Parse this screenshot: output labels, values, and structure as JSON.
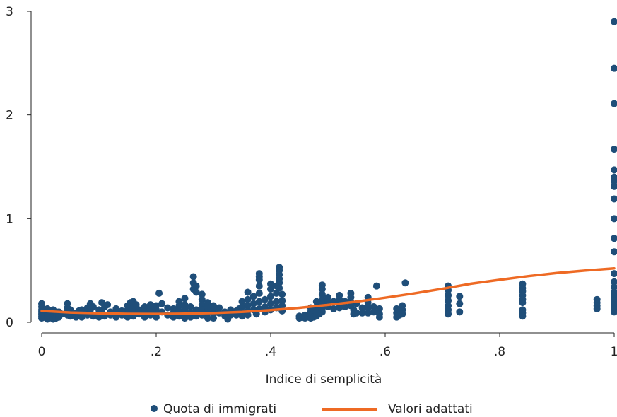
{
  "chart_data": {
    "type": "scatter",
    "xlabel": "Indice di semplicità",
    "ylabel": "",
    "xlim": [
      0,
      1
    ],
    "ylim": [
      0,
      3
    ],
    "x_ticks": [
      {
        "value": 0,
        "label": "0"
      },
      {
        "value": 0.2,
        "label": ".2"
      },
      {
        "value": 0.4,
        "label": ".4"
      },
      {
        "value": 0.6,
        "label": ".6"
      },
      {
        "value": 0.8,
        "label": ".8"
      },
      {
        "value": 1,
        "label": "1"
      }
    ],
    "y_ticks": [
      {
        "value": 0,
        "label": "0"
      },
      {
        "value": 1,
        "label": "1"
      },
      {
        "value": 2,
        "label": "2"
      },
      {
        "value": 3,
        "label": "3"
      }
    ],
    "grid": false,
    "legend_position": "bottom",
    "series": [
      {
        "name": "Quota di immigrati",
        "kind": "scatter",
        "color": "#1f4e79",
        "points": [
          [
            0.0,
            0.18
          ],
          [
            0.0,
            0.15
          ],
          [
            0.0,
            0.12
          ],
          [
            0.0,
            0.1
          ],
          [
            0.0,
            0.08
          ],
          [
            0.0,
            0.06
          ],
          [
            0.0,
            0.04
          ],
          [
            0.01,
            0.13
          ],
          [
            0.01,
            0.07
          ],
          [
            0.01,
            0.03
          ],
          [
            0.015,
            0.11
          ],
          [
            0.015,
            0.05
          ],
          [
            0.02,
            0.12
          ],
          [
            0.02,
            0.09
          ],
          [
            0.02,
            0.06
          ],
          [
            0.02,
            0.03
          ],
          [
            0.025,
            0.1
          ],
          [
            0.025,
            0.04
          ],
          [
            0.03,
            0.1
          ],
          [
            0.03,
            0.07
          ],
          [
            0.03,
            0.05
          ],
          [
            0.035,
            0.08
          ],
          [
            0.045,
            0.18
          ],
          [
            0.045,
            0.14
          ],
          [
            0.045,
            0.1
          ],
          [
            0.045,
            0.07
          ],
          [
            0.05,
            0.12
          ],
          [
            0.05,
            0.06
          ],
          [
            0.06,
            0.09
          ],
          [
            0.06,
            0.05
          ],
          [
            0.065,
            0.11
          ],
          [
            0.07,
            0.12
          ],
          [
            0.07,
            0.08
          ],
          [
            0.07,
            0.05
          ],
          [
            0.08,
            0.14
          ],
          [
            0.08,
            0.1
          ],
          [
            0.08,
            0.07
          ],
          [
            0.085,
            0.18
          ],
          [
            0.085,
            0.12
          ],
          [
            0.09,
            0.15
          ],
          [
            0.09,
            0.06
          ],
          [
            0.1,
            0.12
          ],
          [
            0.1,
            0.08
          ],
          [
            0.1,
            0.05
          ],
          [
            0.105,
            0.19
          ],
          [
            0.105,
            0.1
          ],
          [
            0.11,
            0.15
          ],
          [
            0.11,
            0.06
          ],
          [
            0.115,
            0.17
          ],
          [
            0.12,
            0.1
          ],
          [
            0.12,
            0.07
          ],
          [
            0.13,
            0.13
          ],
          [
            0.13,
            0.09
          ],
          [
            0.13,
            0.05
          ],
          [
            0.14,
            0.11
          ],
          [
            0.14,
            0.07
          ],
          [
            0.15,
            0.16
          ],
          [
            0.15,
            0.12
          ],
          [
            0.15,
            0.08
          ],
          [
            0.15,
            0.05
          ],
          [
            0.155,
            0.19
          ],
          [
            0.16,
            0.2
          ],
          [
            0.16,
            0.14
          ],
          [
            0.16,
            0.1
          ],
          [
            0.16,
            0.06
          ],
          [
            0.165,
            0.17
          ],
          [
            0.17,
            0.12
          ],
          [
            0.17,
            0.08
          ],
          [
            0.18,
            0.15
          ],
          [
            0.18,
            0.1
          ],
          [
            0.18,
            0.05
          ],
          [
            0.19,
            0.17
          ],
          [
            0.19,
            0.12
          ],
          [
            0.19,
            0.07
          ],
          [
            0.2,
            0.16
          ],
          [
            0.2,
            0.12
          ],
          [
            0.2,
            0.08
          ],
          [
            0.2,
            0.05
          ],
          [
            0.205,
            0.28
          ],
          [
            0.21,
            0.18
          ],
          [
            0.21,
            0.1
          ],
          [
            0.22,
            0.14
          ],
          [
            0.22,
            0.07
          ],
          [
            0.23,
            0.13
          ],
          [
            0.23,
            0.09
          ],
          [
            0.23,
            0.05
          ],
          [
            0.24,
            0.2
          ],
          [
            0.24,
            0.16
          ],
          [
            0.24,
            0.11
          ],
          [
            0.24,
            0.06
          ],
          [
            0.25,
            0.23
          ],
          [
            0.25,
            0.17
          ],
          [
            0.25,
            0.12
          ],
          [
            0.25,
            0.08
          ],
          [
            0.25,
            0.04
          ],
          [
            0.26,
            0.15
          ],
          [
            0.26,
            0.09
          ],
          [
            0.26,
            0.05
          ],
          [
            0.265,
            0.44
          ],
          [
            0.265,
            0.38
          ],
          [
            0.265,
            0.32
          ],
          [
            0.27,
            0.35
          ],
          [
            0.27,
            0.29
          ],
          [
            0.27,
            0.12
          ],
          [
            0.27,
            0.06
          ],
          [
            0.28,
            0.27
          ],
          [
            0.28,
            0.22
          ],
          [
            0.28,
            0.17
          ],
          [
            0.28,
            0.12
          ],
          [
            0.28,
            0.07
          ],
          [
            0.29,
            0.19
          ],
          [
            0.29,
            0.14
          ],
          [
            0.29,
            0.09
          ],
          [
            0.29,
            0.04
          ],
          [
            0.3,
            0.16
          ],
          [
            0.3,
            0.12
          ],
          [
            0.3,
            0.08
          ],
          [
            0.3,
            0.04
          ],
          [
            0.31,
            0.14
          ],
          [
            0.31,
            0.09
          ],
          [
            0.32,
            0.1
          ],
          [
            0.32,
            0.06
          ],
          [
            0.325,
            0.03
          ],
          [
            0.33,
            0.12
          ],
          [
            0.33,
            0.07
          ],
          [
            0.34,
            0.11
          ],
          [
            0.34,
            0.07
          ],
          [
            0.345,
            0.13
          ],
          [
            0.35,
            0.2
          ],
          [
            0.35,
            0.15
          ],
          [
            0.35,
            0.1
          ],
          [
            0.35,
            0.06
          ],
          [
            0.36,
            0.29
          ],
          [
            0.36,
            0.22
          ],
          [
            0.36,
            0.16
          ],
          [
            0.36,
            0.11
          ],
          [
            0.36,
            0.07
          ],
          [
            0.37,
            0.25
          ],
          [
            0.37,
            0.18
          ],
          [
            0.37,
            0.12
          ],
          [
            0.375,
            0.08
          ],
          [
            0.38,
            0.47
          ],
          [
            0.38,
            0.44
          ],
          [
            0.38,
            0.41
          ],
          [
            0.38,
            0.35
          ],
          [
            0.38,
            0.28
          ],
          [
            0.38,
            0.2
          ],
          [
            0.38,
            0.13
          ],
          [
            0.39,
            0.22
          ],
          [
            0.39,
            0.15
          ],
          [
            0.39,
            0.1
          ],
          [
            0.4,
            0.37
          ],
          [
            0.4,
            0.32
          ],
          [
            0.4,
            0.25
          ],
          [
            0.4,
            0.18
          ],
          [
            0.4,
            0.12
          ],
          [
            0.41,
            0.35
          ],
          [
            0.41,
            0.28
          ],
          [
            0.41,
            0.2
          ],
          [
            0.41,
            0.14
          ],
          [
            0.415,
            0.53
          ],
          [
            0.415,
            0.5
          ],
          [
            0.415,
            0.46
          ],
          [
            0.415,
            0.42
          ],
          [
            0.415,
            0.38
          ],
          [
            0.415,
            0.33
          ],
          [
            0.42,
            0.27
          ],
          [
            0.42,
            0.21
          ],
          [
            0.42,
            0.16
          ],
          [
            0.42,
            0.11
          ],
          [
            0.45,
            0.06
          ],
          [
            0.45,
            0.04
          ],
          [
            0.455,
            0.05
          ],
          [
            0.46,
            0.07
          ],
          [
            0.46,
            0.04
          ],
          [
            0.465,
            0.05
          ],
          [
            0.47,
            0.14
          ],
          [
            0.47,
            0.1
          ],
          [
            0.47,
            0.07
          ],
          [
            0.47,
            0.04
          ],
          [
            0.475,
            0.12
          ],
          [
            0.475,
            0.05
          ],
          [
            0.48,
            0.2
          ],
          [
            0.48,
            0.15
          ],
          [
            0.48,
            0.1
          ],
          [
            0.48,
            0.06
          ],
          [
            0.485,
            0.17
          ],
          [
            0.485,
            0.08
          ],
          [
            0.49,
            0.36
          ],
          [
            0.49,
            0.32
          ],
          [
            0.49,
            0.27
          ],
          [
            0.49,
            0.22
          ],
          [
            0.49,
            0.18
          ],
          [
            0.49,
            0.14
          ],
          [
            0.49,
            0.1
          ],
          [
            0.5,
            0.24
          ],
          [
            0.5,
            0.19
          ],
          [
            0.5,
            0.15
          ],
          [
            0.51,
            0.2
          ],
          [
            0.51,
            0.13
          ],
          [
            0.52,
            0.26
          ],
          [
            0.52,
            0.22
          ],
          [
            0.52,
            0.18
          ],
          [
            0.52,
            0.14
          ],
          [
            0.53,
            0.2
          ],
          [
            0.53,
            0.15
          ],
          [
            0.54,
            0.28
          ],
          [
            0.54,
            0.24
          ],
          [
            0.54,
            0.2
          ],
          [
            0.54,
            0.16
          ],
          [
            0.545,
            0.12
          ],
          [
            0.545,
            0.08
          ],
          [
            0.55,
            0.18
          ],
          [
            0.55,
            0.09
          ],
          [
            0.56,
            0.14
          ],
          [
            0.56,
            0.09
          ],
          [
            0.57,
            0.24
          ],
          [
            0.57,
            0.19
          ],
          [
            0.57,
            0.14
          ],
          [
            0.57,
            0.09
          ],
          [
            0.58,
            0.15
          ],
          [
            0.58,
            0.1
          ],
          [
            0.585,
            0.35
          ],
          [
            0.59,
            0.13
          ],
          [
            0.59,
            0.08
          ],
          [
            0.59,
            0.05
          ],
          [
            0.62,
            0.13
          ],
          [
            0.62,
            0.09
          ],
          [
            0.62,
            0.05
          ],
          [
            0.625,
            0.11
          ],
          [
            0.625,
            0.07
          ],
          [
            0.63,
            0.16
          ],
          [
            0.63,
            0.12
          ],
          [
            0.63,
            0.08
          ],
          [
            0.635,
            0.38
          ],
          [
            0.71,
            0.35
          ],
          [
            0.71,
            0.31
          ],
          [
            0.71,
            0.26
          ],
          [
            0.71,
            0.21
          ],
          [
            0.71,
            0.16
          ],
          [
            0.71,
            0.12
          ],
          [
            0.71,
            0.08
          ],
          [
            0.73,
            0.25
          ],
          [
            0.73,
            0.18
          ],
          [
            0.73,
            0.1
          ],
          [
            0.84,
            0.37
          ],
          [
            0.84,
            0.33
          ],
          [
            0.84,
            0.3
          ],
          [
            0.84,
            0.26
          ],
          [
            0.84,
            0.22
          ],
          [
            0.84,
            0.19
          ],
          [
            0.84,
            0.12
          ],
          [
            0.84,
            0.09
          ],
          [
            0.84,
            0.06
          ],
          [
            0.97,
            0.22
          ],
          [
            0.97,
            0.19
          ],
          [
            0.97,
            0.16
          ],
          [
            0.97,
            0.13
          ],
          [
            1.0,
            2.9
          ],
          [
            1.0,
            2.45
          ],
          [
            1.0,
            2.11
          ],
          [
            1.0,
            1.67
          ],
          [
            1.0,
            1.47
          ],
          [
            1.0,
            1.4
          ],
          [
            1.0,
            1.36
          ],
          [
            1.0,
            1.31
          ],
          [
            1.0,
            1.19
          ],
          [
            1.0,
            1.0
          ],
          [
            1.0,
            0.81
          ],
          [
            1.0,
            0.68
          ],
          [
            1.0,
            0.47
          ],
          [
            1.0,
            0.39
          ],
          [
            1.0,
            0.34
          ],
          [
            1.0,
            0.29
          ],
          [
            1.0,
            0.25
          ],
          [
            1.0,
            0.21
          ],
          [
            1.0,
            0.17
          ],
          [
            1.0,
            0.13
          ],
          [
            1.0,
            0.1
          ]
        ]
      },
      {
        "name": "Valori adattati",
        "kind": "line",
        "color": "#ee6a24",
        "points": [
          [
            0.0,
            0.11
          ],
          [
            0.05,
            0.095
          ],
          [
            0.1,
            0.087
          ],
          [
            0.15,
            0.082
          ],
          [
            0.2,
            0.081
          ],
          [
            0.25,
            0.083
          ],
          [
            0.3,
            0.089
          ],
          [
            0.35,
            0.1
          ],
          [
            0.4,
            0.117
          ],
          [
            0.45,
            0.14
          ],
          [
            0.5,
            0.168
          ],
          [
            0.55,
            0.2
          ],
          [
            0.6,
            0.237
          ],
          [
            0.65,
            0.278
          ],
          [
            0.7,
            0.323
          ],
          [
            0.75,
            0.372
          ],
          [
            0.8,
            0.41
          ],
          [
            0.85,
            0.445
          ],
          [
            0.9,
            0.475
          ],
          [
            0.95,
            0.5
          ],
          [
            1.0,
            0.52
          ]
        ]
      }
    ]
  }
}
